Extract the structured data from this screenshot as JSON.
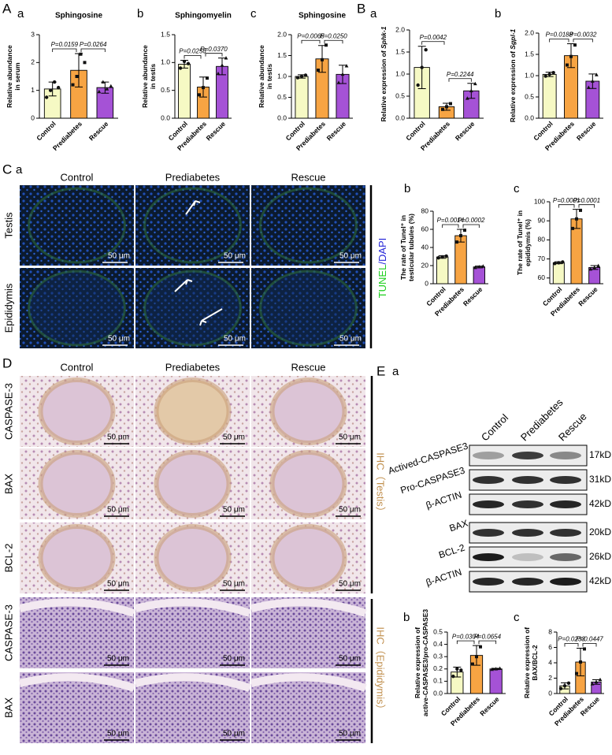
{
  "section_labels": [
    "A",
    "B",
    "C",
    "D",
    "E"
  ],
  "chart_data": [
    {
      "type": "bar",
      "panel": "a",
      "title": "Sphingosine",
      "ylabel": [
        "Relative abundance",
        "in serum"
      ],
      "categories": [
        "Control",
        "Prediabetes",
        "Rescue"
      ],
      "colors": [
        "#f6f9c4",
        "#f7a443",
        "#a552d6"
      ],
      "values": [
        1.05,
        1.72,
        1.1
      ],
      "errors": [
        0.25,
        0.6,
        0.2
      ],
      "points": [
        [
          0.75,
          1.0,
          1.3,
          1.1
        ],
        [
          1.2,
          1.5,
          2.3,
          2.0
        ],
        [
          0.95,
          1.3,
          1.05,
          1.15
        ]
      ],
      "ylim": [
        0,
        3
      ],
      "yticks": [
        0,
        1,
        2,
        3
      ],
      "annotations": [
        "P=0.0159",
        "P=0.0264"
      ]
    },
    {
      "type": "bar",
      "panel": "b",
      "title": "Sphingomyelin",
      "ylabel": [
        "Relative abundance",
        "in testis"
      ],
      "categories": [
        "Control",
        "Prediabetes",
        "Rescue"
      ],
      "colors": [
        "#f6f9c4",
        "#f7a443",
        "#a552d6"
      ],
      "values": [
        0.97,
        0.56,
        0.93
      ],
      "errors": [
        0.07,
        0.18,
        0.15
      ],
      "points": [
        [
          0.9,
          1.02,
          0.98
        ],
        [
          0.42,
          0.55,
          0.72
        ],
        [
          0.8,
          0.95,
          1.08
        ]
      ],
      "ylim": [
        0,
        1.5
      ],
      "yticks": [
        {
          "value": 0,
          "label": "0.0"
        },
        0.5,
        {
          "value": 1,
          "label": "1.0"
        },
        1.5
      ],
      "annotations": [
        "P=0.0256",
        "P=0.0370"
      ]
    },
    {
      "type": "bar",
      "panel": "c",
      "title": "Sphingosine",
      "ylabel": [
        "Relative abundance",
        "in testis"
      ],
      "categories": [
        "Control",
        "Prediabetes",
        "Rescue"
      ],
      "colors": [
        "#f6f9c4",
        "#f7a443",
        "#a552d6"
      ],
      "values": [
        1.0,
        1.42,
        1.05
      ],
      "errors": [
        0.04,
        0.32,
        0.22
      ],
      "points": [
        [
          0.97,
          1.0,
          1.03
        ],
        [
          1.15,
          1.4,
          1.75
        ],
        [
          0.85,
          1.05,
          1.25
        ]
      ],
      "ylim": [
        0,
        2
      ],
      "yticks": [
        {
          "value": 0,
          "label": "0.0"
        },
        0.5,
        {
          "value": 1,
          "label": "1.0"
        },
        1.5,
        {
          "value": 2,
          "label": "2.0"
        }
      ],
      "annotations": [
        "P=0.0065",
        "P=0.0250"
      ]
    },
    {
      "type": "bar",
      "panel": "a",
      "ylabel": [
        "Relative expression of "
      ],
      "ylabel_gene": "Sphk-1",
      "categories": [
        "Control",
        "Prediabetes",
        "Rescue"
      ],
      "colors": [
        "#f6f9c4",
        "#f7a443",
        "#a552d6"
      ],
      "values": [
        1.15,
        0.26,
        0.62
      ],
      "errors": [
        0.48,
        0.08,
        0.17
      ],
      "points": [
        [
          0.75,
          1.15,
          1.55
        ],
        [
          0.2,
          0.26,
          0.33
        ],
        [
          0.45,
          0.62,
          0.78
        ]
      ],
      "ylim": [
        0,
        2
      ],
      "yticks": [
        {
          "value": 0,
          "label": "0.0"
        },
        0.5,
        {
          "value": 1,
          "label": "1.0"
        },
        1.5,
        {
          "value": 2,
          "label": "2.0"
        }
      ],
      "annotations": [
        "P=0.0042",
        "P=0.2244"
      ]
    },
    {
      "type": "bar",
      "panel": "b",
      "ylabel": [
        "Relative expression of "
      ],
      "ylabel_gene": "Sgpl-1",
      "categories": [
        "Control",
        "Prediabetes",
        "Rescue"
      ],
      "colors": [
        "#f6f9c4",
        "#f7a443",
        "#a552d6"
      ],
      "values": [
        1.03,
        1.47,
        0.87
      ],
      "errors": [
        0.05,
        0.28,
        0.17
      ],
      "points": [
        [
          0.99,
          1.03,
          1.07
        ],
        [
          1.25,
          1.45,
          1.72
        ],
        [
          0.72,
          0.87,
          1.02
        ]
      ],
      "ylim": [
        0,
        2
      ],
      "yticks": [
        {
          "value": 0,
          "label": "0.0"
        },
        0.5,
        {
          "value": 1,
          "label": "1.0"
        },
        1.5,
        {
          "value": 2,
          "label": "2.0"
        }
      ],
      "annotations": [
        "P=0.0188",
        "P=0.0032"
      ]
    },
    {
      "type": "bar",
      "panel": "b",
      "ylabel": [
        "The rate of Tunel⁺ in",
        "testicular tubules (%)"
      ],
      "categories": [
        "Control",
        "Prediabetes",
        "Rescue"
      ],
      "colors": [
        "#f6f9c4",
        "#f7a443",
        "#a552d6"
      ],
      "values": [
        29.5,
        53,
        18.5
      ],
      "errors": [
        1.5,
        7,
        1
      ],
      "points": [
        [
          28.5,
          29.5,
          30.5
        ],
        [
          46,
          53,
          59
        ],
        [
          17.8,
          18.5,
          19.3
        ]
      ],
      "ylim": [
        0,
        80
      ],
      "yticks": [
        0,
        20,
        40,
        60,
        80
      ],
      "annotations": [
        "P=0.0014",
        "P=0.0002"
      ]
    },
    {
      "type": "bar",
      "panel": "c",
      "ylabel": [
        "The rate of Tunel⁺ in",
        "epididymis (%)"
      ],
      "categories": [
        "Control",
        "Prediabetes",
        "Rescue"
      ],
      "colors": [
        "#f6f9c4",
        "#f7a443",
        "#a552d6"
      ],
      "values": [
        68,
        91,
        65.5
      ],
      "errors": [
        0.5,
        5,
        1
      ],
      "points": [
        [
          67.6,
          68,
          68.4
        ],
        [
          86,
          91,
          95.5
        ],
        [
          64.6,
          65.5,
          66.4
        ]
      ],
      "ylim": [
        57,
        100
      ],
      "yticks": [
        60,
        70,
        80,
        90,
        100
      ],
      "annotations": [
        "P=0.0001",
        "P=0.0001"
      ]
    },
    {
      "type": "bar",
      "panel": "b",
      "ylabel": [
        "Relative expression of",
        "active-CASPASE3/pro-CASPASE3"
      ],
      "categories": [
        "Control",
        "Prediabetes",
        "Rescue"
      ],
      "colors": [
        "#f6f9c4",
        "#f7a443",
        "#a552d6"
      ],
      "values": [
        0.175,
        0.31,
        0.2
      ],
      "errors": [
        0.04,
        0.08,
        0.005
      ],
      "points": [
        [
          0.14,
          0.2,
          0.19
        ],
        [
          0.24,
          0.3,
          0.38
        ],
        [
          0.196,
          0.2,
          0.204
        ]
      ],
      "ylim": [
        0,
        0.5
      ],
      "yticks": [
        {
          "value": 0,
          "label": "0.0"
        },
        0.1,
        0.2,
        0.3,
        0.4,
        0.5
      ],
      "annotations": [
        "P=0.0304",
        "P=0.0654"
      ]
    },
    {
      "type": "bar",
      "panel": "c",
      "ylabel": [
        "Relative expression of",
        "BAX/BCL-2"
      ],
      "categories": [
        "Control",
        "Prediabetes",
        "Rescue"
      ],
      "colors": [
        "#f6f9c4",
        "#f7a443",
        "#a552d6"
      ],
      "values": [
        1.0,
        4.1,
        1.5
      ],
      "errors": [
        0.4,
        1.8,
        0.3
      ],
      "points": [
        [
          0.65,
          1.0,
          1.35
        ],
        [
          2.6,
          4.1,
          5.8
        ],
        [
          1.25,
          1.5,
          1.8
        ]
      ],
      "ylim": [
        0,
        8
      ],
      "yticks": [
        0,
        2,
        4,
        6,
        8
      ],
      "annotations": [
        "P=0.0233",
        "P=0.0447"
      ]
    }
  ],
  "tunel": {
    "panel": "a",
    "columns": [
      "Control",
      "Prediabetes",
      "Rescue"
    ],
    "rows": [
      "Testis",
      "Epididymis"
    ],
    "scale_bar": "50 μm",
    "stain": [
      "TUNEL",
      "/DAPI"
    ]
  },
  "ihc": {
    "columns": [
      "Control",
      "Prediabetes",
      "Rescue"
    ],
    "rows": [
      "CASPASE-3",
      "BAX",
      "BCL-2",
      "CASPASE-3",
      "BAX"
    ],
    "scale_bar": "50 μm",
    "groups": [
      "IHC（Testis）",
      "IHC（Epididymis）"
    ]
  },
  "western": {
    "panel": "a",
    "lanes": [
      "Control",
      "Prediabetes",
      "Rescue"
    ],
    "proteins": [
      "Actived-CASPASE3",
      "Pro-CASPASE3",
      "β-ACTIN",
      "BAX",
      "BCL-2",
      "β-ACTIN"
    ],
    "sizes": [
      "17kD",
      "31kD",
      "42kD",
      "20kD",
      "26kD",
      "42kD"
    ]
  }
}
